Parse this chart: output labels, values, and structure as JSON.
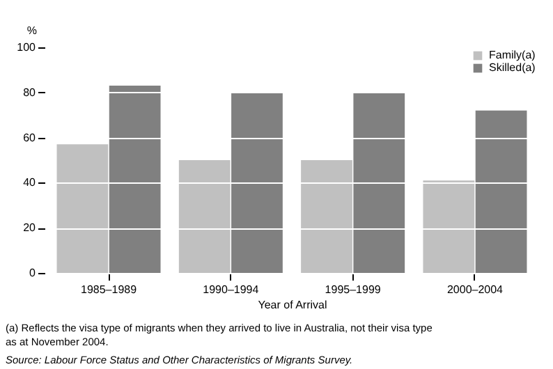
{
  "chart_data": {
    "type": "bar",
    "ylabel": "%",
    "xlabel": "Year of Arrival",
    "categories": [
      "1985–1989",
      "1990–1994",
      "1995–1999",
      "2000–2004"
    ],
    "series": [
      {
        "name": "Family(a)",
        "color": "#c0c0c0",
        "values": [
          57,
          50,
          50,
          41
        ]
      },
      {
        "name": "Skilled(a)",
        "color": "#808080",
        "values": [
          83,
          80,
          80,
          72
        ]
      }
    ],
    "ylim": [
      0,
      100
    ],
    "yticks": [
      0,
      20,
      40,
      60,
      80,
      100
    ],
    "grid": "y",
    "legend": "top right",
    "annotations": [
      "(a) Reflects the visa type of migrants when they arrived to live in Australia, not their visa type as at November 2004.",
      "Source: Labour Force Status and Other Characteristics of Migrants Survey."
    ]
  }
}
